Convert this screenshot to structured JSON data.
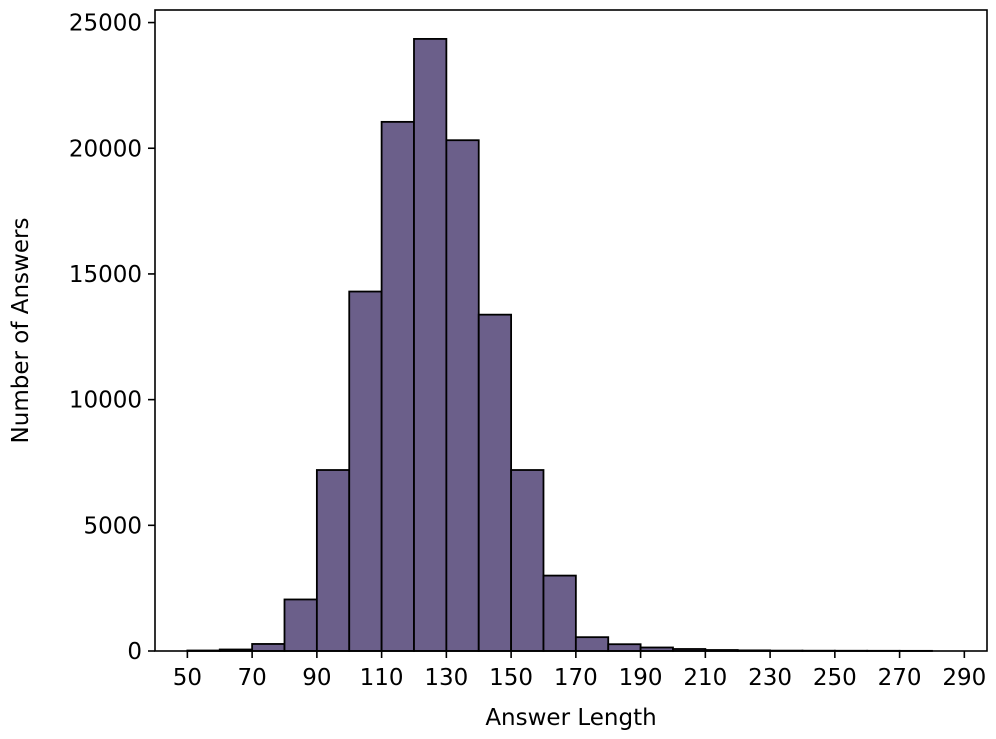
{
  "chart_data": {
    "type": "bar",
    "title": "",
    "xlabel": "Answer Length",
    "ylabel": "Number of Answers",
    "bin_width": 10,
    "bins": [
      {
        "start": 50,
        "end": 60,
        "count": 20
      },
      {
        "start": 60,
        "end": 70,
        "count": 60
      },
      {
        "start": 70,
        "end": 80,
        "count": 280
      },
      {
        "start": 80,
        "end": 90,
        "count": 2050
      },
      {
        "start": 90,
        "end": 100,
        "count": 7200
      },
      {
        "start": 100,
        "end": 110,
        "count": 14300
      },
      {
        "start": 110,
        "end": 120,
        "count": 21050
      },
      {
        "start": 120,
        "end": 130,
        "count": 24350
      },
      {
        "start": 130,
        "end": 140,
        "count": 20320
      },
      {
        "start": 140,
        "end": 150,
        "count": 13380
      },
      {
        "start": 150,
        "end": 160,
        "count": 7200
      },
      {
        "start": 160,
        "end": 170,
        "count": 3000
      },
      {
        "start": 170,
        "end": 180,
        "count": 550
      },
      {
        "start": 180,
        "end": 190,
        "count": 270
      },
      {
        "start": 190,
        "end": 200,
        "count": 140
      },
      {
        "start": 200,
        "end": 210,
        "count": 80
      },
      {
        "start": 210,
        "end": 220,
        "count": 40
      },
      {
        "start": 220,
        "end": 230,
        "count": 25
      },
      {
        "start": 230,
        "end": 240,
        "count": 15
      },
      {
        "start": 240,
        "end": 250,
        "count": 12
      },
      {
        "start": 250,
        "end": 260,
        "count": 10
      },
      {
        "start": 260,
        "end": 270,
        "count": 8
      },
      {
        "start": 270,
        "end": 280,
        "count": 6
      }
    ],
    "xlim": [
      40,
      297
    ],
    "ylim": [
      0,
      25500
    ],
    "xticks": [
      50,
      70,
      90,
      110,
      130,
      150,
      170,
      190,
      210,
      230,
      250,
      270,
      290
    ],
    "yticks": [
      0,
      5000,
      10000,
      15000,
      20000,
      25000
    ],
    "grid": false,
    "colors": {
      "bar_fill": "#6b5f8a",
      "bar_edge": "#000000"
    }
  }
}
